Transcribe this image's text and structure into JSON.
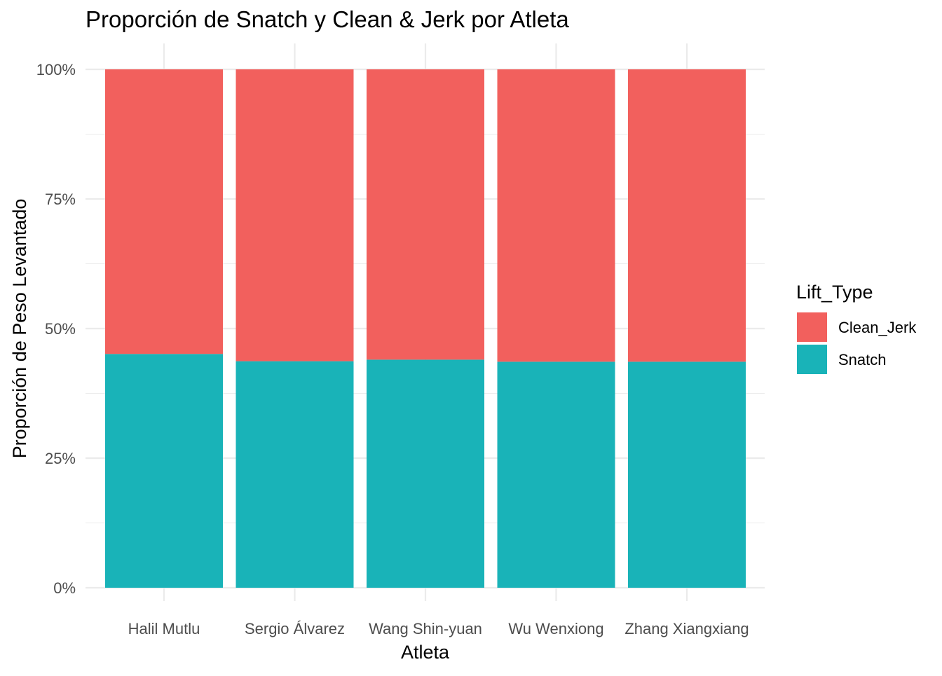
{
  "chart_data": {
    "type": "bar",
    "stacked": true,
    "position": "fill",
    "title": "Proporción de Snatch y Clean & Jerk por Atleta",
    "xlabel": "Atleta",
    "ylabel": "Proporción de Peso Levantado",
    "categories": [
      "Halil Mutlu",
      "Sergio Álvarez",
      "Wang Shin-yuan",
      "Wu Wenxiong",
      "Zhang Xiangxiang"
    ],
    "series": [
      {
        "name": "Snatch",
        "color": "#19B3B8",
        "values": [
          0.451,
          0.437,
          0.44,
          0.436,
          0.436
        ]
      },
      {
        "name": "Clean_Jerk",
        "color": "#F2605D",
        "values": [
          0.549,
          0.563,
          0.56,
          0.564,
          0.564
        ]
      }
    ],
    "ylim": [
      0,
      1
    ],
    "y_ticks": [
      {
        "value": 0,
        "label": "0%"
      },
      {
        "value": 0.25,
        "label": "25%"
      },
      {
        "value": 0.5,
        "label": "50%"
      },
      {
        "value": 0.75,
        "label": "75%"
      },
      {
        "value": 1,
        "label": "100%"
      }
    ],
    "grid": true,
    "legend": {
      "title": "Lift_Type",
      "placement": "right",
      "entries": [
        {
          "label": "Clean_Jerk",
          "color": "#F2605D"
        },
        {
          "label": "Snatch",
          "color": "#19B3B8"
        }
      ]
    }
  }
}
